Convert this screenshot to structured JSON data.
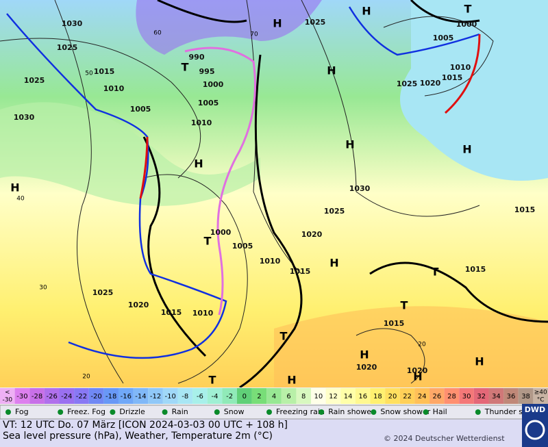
{
  "map": {
    "pressure_labels": [
      "1030",
      "1025",
      "1015",
      "1025",
      "1010",
      "1005",
      "1030",
      "1010",
      "990",
      "995",
      "1000",
      "1005",
      "1025",
      "1005",
      "1000",
      "1010",
      "1015",
      "1025",
      "1020",
      "1030",
      "1025",
      "1020",
      "1000",
      "1005",
      "1010",
      "1015",
      "1025",
      "1020",
      "1015",
      "1010",
      "1015",
      "1015",
      "1015",
      "1020",
      "1020"
    ],
    "isotherm_labels": [
      "40",
      "30",
      "20",
      "50",
      "60",
      "70",
      "20"
    ],
    "highs": [
      "H",
      "H",
      "H",
      "H",
      "H",
      "H",
      "H",
      "H",
      "H",
      "H",
      "H",
      "H"
    ],
    "lows": [
      "T",
      "T",
      "T",
      "T",
      "T",
      "T",
      "T"
    ]
  },
  "temperature_scale": {
    "below_sign": "<",
    "below_value": -30,
    "below_color": "#eeb0f4",
    "values": [
      -30,
      -28,
      -26,
      -24,
      -22,
      -20,
      -18,
      -16,
      -14,
      -12,
      -10,
      -8,
      -6,
      -4,
      -2,
      0,
      2,
      4,
      6,
      8,
      10,
      12,
      14,
      16,
      18,
      20,
      22,
      24,
      26,
      28,
      30,
      32,
      34,
      36,
      38
    ],
    "colors": [
      "#dd80ee",
      "#c870e8",
      "#b070ec",
      "#9a70f0",
      "#8878f4",
      "#7088f4",
      "#6898f6",
      "#70a8f8",
      "#80b8f8",
      "#90c8f8",
      "#a0d8f8",
      "#a8e6f4",
      "#a8f0ea",
      "#a0f0d4",
      "#90eab8",
      "#60d078",
      "#78de78",
      "#98e894",
      "#b8f0a8",
      "#d8f8c0",
      "#ffffe8",
      "#ffffc8",
      "#ffffa8",
      "#fff890",
      "#fff070",
      "#ffe060",
      "#ffd058",
      "#ffc058",
      "#ffa868",
      "#ff9070",
      "#f47878",
      "#e46878",
      "#d07878",
      "#c08878",
      "#b09888"
    ],
    "above_label": "≥40",
    "unit": "°C",
    "above_color": "#c8b4a4"
  },
  "weather_legend": [
    "Fog",
    "Freez. Fog",
    "Drizzle",
    "Rain",
    "Snow",
    "Freezing rain",
    "Rain shower",
    "Snow shower",
    "Hail",
    "Thunder storm"
  ],
  "footer": {
    "valid_time": "VT: 12 UTC Do.  07 März [ICON 2024-03-03  00 UTC + 108 h]",
    "description": "Sea level pressure (hPa), Weather, Temperature 2m (°C)",
    "copyright": "© 2024 Deutscher Wetterdienst",
    "logo": "DWD"
  }
}
